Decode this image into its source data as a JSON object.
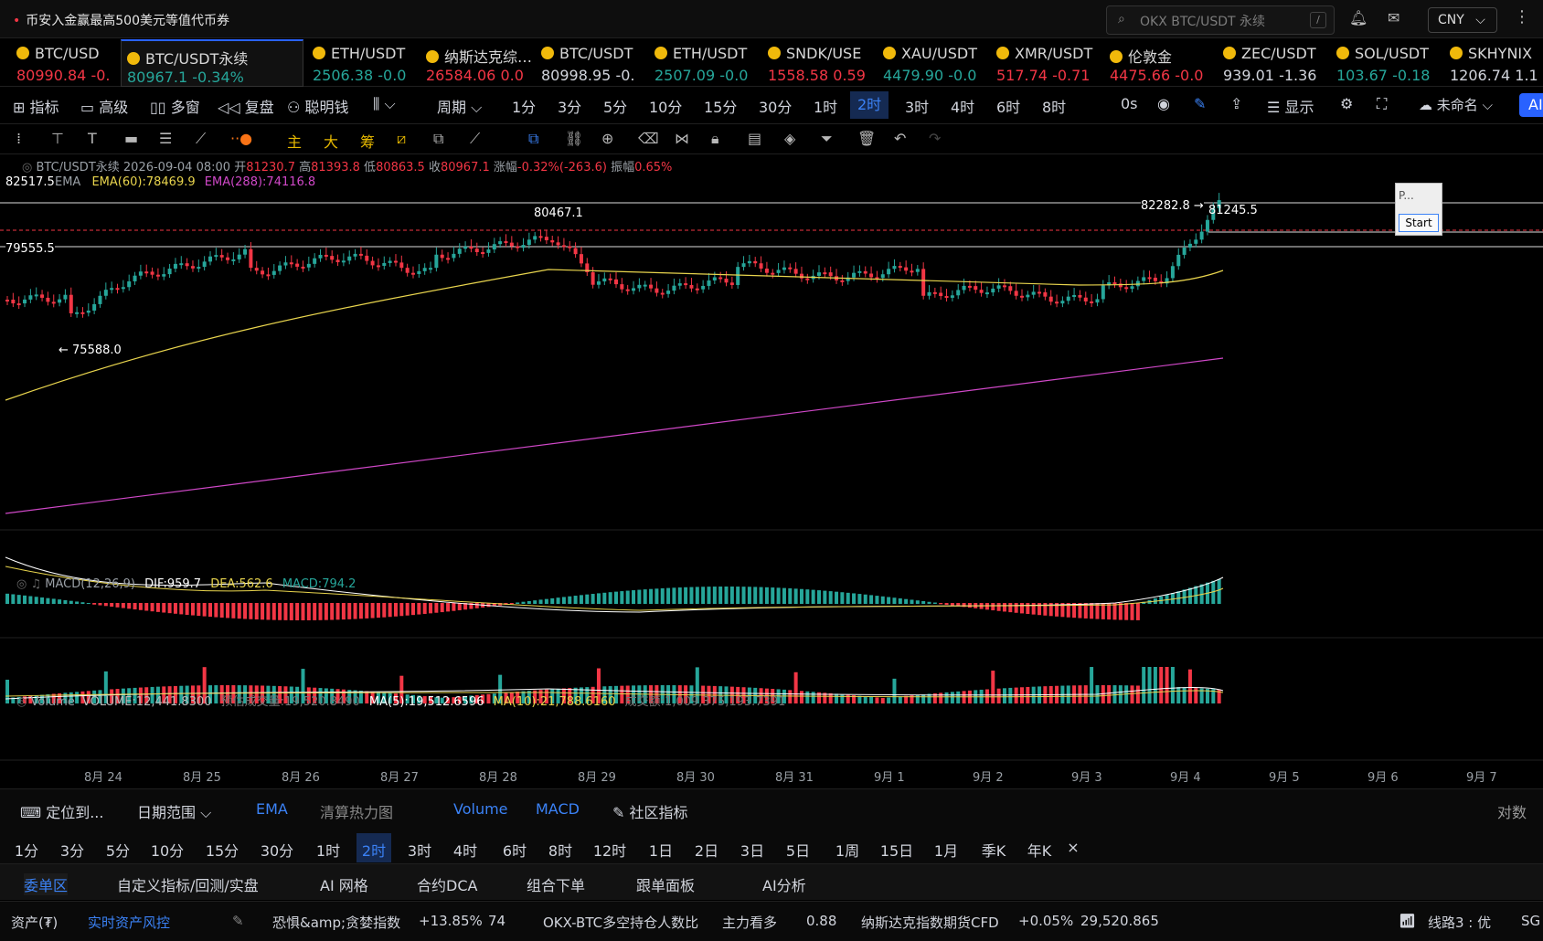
{
  "topbar": {
    "promo": "币安入金赢最高500美元等值代币券",
    "search_placeholder": "OKX BTC/USDT 永续",
    "search_key": "/",
    "currency": "CNY"
  },
  "tickers": [
    {
      "name": "BTC/USD",
      "price": "80990.84",
      "change": "-0.",
      "dir": "dn"
    },
    {
      "name": "BTC/USDT永续",
      "price": "80967.1",
      "change": "-0.34%",
      "dir": "up",
      "active": true
    },
    {
      "name": "ETH/USDT",
      "price": "2506.38",
      "change": "-0.0",
      "dir": "up"
    },
    {
      "name": "纳斯达克综…",
      "price": "26584.06",
      "change": "0.0",
      "dir": "dn"
    },
    {
      "name": "BTC/USDT",
      "price": "80998.95",
      "change": "-0.",
      "dir": "plain"
    },
    {
      "name": "ETH/USDT",
      "price": "2507.09",
      "change": "-0.0",
      "dir": "up"
    },
    {
      "name": "SNDK/USE",
      "price": "1558.58",
      "change": "0.59",
      "dir": "dn"
    },
    {
      "name": "XAU/USDT",
      "price": "4479.90",
      "change": "-0.0",
      "dir": "up"
    },
    {
      "name": "XMR/USDT",
      "price": "517.74",
      "change": "-0.71",
      "dir": "dn"
    },
    {
      "name": "伦敦金",
      "price": "4475.66",
      "change": "-0.0",
      "dir": "dn"
    },
    {
      "name": "ZEC/USDT",
      "price": "939.01",
      "change": "-1.36",
      "dir": "plain"
    },
    {
      "name": "SOL/USDT",
      "price": "103.67",
      "change": "-0.18",
      "dir": "up"
    },
    {
      "name": "SKHYNIX",
      "price": "1206.74",
      "change": "1.1",
      "dir": "plain"
    }
  ],
  "toolbar1": {
    "indicators": "指标",
    "advanced": "高级",
    "multi": "多窗",
    "replay": "复盘",
    "smart": "聪明钱",
    "period": "周期",
    "intervals": [
      "1分",
      "3分",
      "5分",
      "10分",
      "15分",
      "30分",
      "1时",
      "2时",
      "3时",
      "4时",
      "6时",
      "8时"
    ],
    "selected": "2时",
    "seconds": "0s",
    "display": "显示",
    "unnamed": "未命名",
    "ai": "AI"
  },
  "toolbar2": {
    "main": "主",
    "big": "大",
    "chip": "筹"
  },
  "legend": {
    "symbol": "BTC/USDT永续",
    "datetime": "2026-09-04 08:00",
    "open_l": "开",
    "open": "81230.7",
    "high_l": "高",
    "high": "81393.8",
    "low_l": "低",
    "low": "80863.5",
    "close_l": "收",
    "close": "80967.1",
    "chg_l": "涨幅",
    "chg": "-0.32%(-263.6)",
    "amp_l": "振幅",
    "amp": "0.65%",
    "ema": "EMA",
    "ema60": "EMA(60):78469.9",
    "ema288": "EMA(288):74116.8"
  },
  "price_labels": {
    "top": "82517.5",
    "mid": "79555.5",
    "hi": "82282.8",
    "cur": "81245.5",
    "peak": "80467.1",
    "low": "75588.0"
  },
  "macd": {
    "name": "MACD(12,26,9)",
    "dif": "DIF:959.7",
    "dea": "DEA:562.6",
    "macd": "MACD:794.2"
  },
  "volume": {
    "name": "Volume",
    "vol": "VOLUME:12,441.8300",
    "est": "预估成交量:19,520.8490",
    "ma5": "MA(5):19,512.6596",
    "ma10": "MA(10):21,788.6160",
    "turnover": "成交额:1,009,375,193.7391"
  },
  "dates": [
    "8月 24",
    "8月 25",
    "8月 26",
    "8月 27",
    "8月 28",
    "8月 29",
    "8月 30",
    "8月 31",
    "9月 1",
    "9月 2",
    "9月 3",
    "9月 4",
    "9月 5",
    "9月 6",
    "9月 7"
  ],
  "floatbox": {
    "title": "P...",
    "start": "Start"
  },
  "bottom": {
    "locate": "定位到...",
    "range": "日期范围",
    "ema": "EMA",
    "heat": "清算热力图",
    "vol": "Volume",
    "macd": "MACD",
    "community": "社区指标",
    "log": "对数"
  },
  "bottom_intervals": [
    "1分",
    "3分",
    "5分",
    "10分",
    "15分",
    "30分",
    "1时",
    "2时",
    "3时",
    "4时",
    "6时",
    "8时",
    "12时",
    "1日",
    "2日",
    "3日",
    "5日",
    "1周",
    "15日",
    "1月",
    "季K",
    "年K"
  ],
  "bottom_selected": "2时",
  "tabs": [
    "委单区",
    "自定义指标/回测/实盘",
    "AI 网格",
    "合约DCA",
    "组合下单",
    "跟单面板",
    "AI分析"
  ],
  "status": {
    "assets": "资产(₮)",
    "risk": "实时资产风控",
    "fear": "恐惧&amp;贪婪指数",
    "fear_chg": "+13.85%",
    "fear_val": "74",
    "ls": "OKX-BTC多空持仓人数比",
    "ls_tag": "主力看多",
    "ls_val": "0.88",
    "nas": "纳斯达克指数期货CFD",
    "nas_chg": "+0.05%",
    "nas_val": "29,520.865",
    "line": "线路3 : 优",
    "sg": "SG"
  },
  "colors": {
    "up": "#26a69a",
    "down": "#f23645",
    "ema60": "#e8d44d",
    "ema288": "#d048c8",
    "accent": "#3b82f6"
  }
}
